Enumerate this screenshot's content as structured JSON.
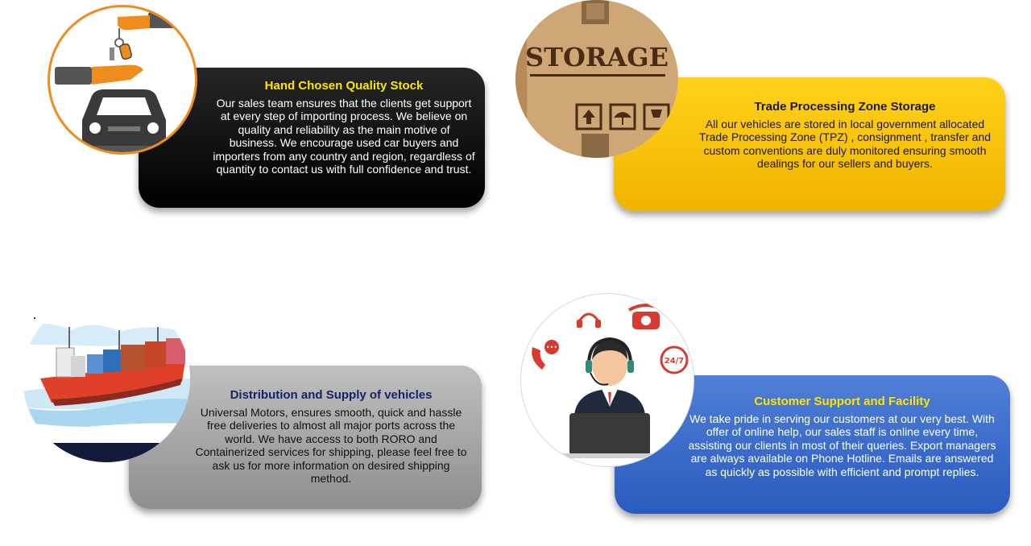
{
  "features": [
    {
      "title": "Hand Chosen Quality Stock",
      "body": "Our sales team ensures that the clients get support at every step of importing process. We believe on quality and reliability as the main motive of business. We encourage used car buyers and importers from any country and region, regardless of quantity to contact us with full confidence and trust.",
      "icon": "car-keys-handover-icon"
    },
    {
      "title": "Trade Processing Zone Storage",
      "body": "All our vehicles are stored in local government allocated Trade Processing Zone (TPZ) , consignment , transfer and custom conventions are duly monitored ensuring smooth dealings for our sellers and buyers.",
      "icon": "storage-box-icon",
      "image_text": "STORAGE"
    },
    {
      "title": "Distribution and Supply of vehicles",
      "body": "Universal Motors, ensures smooth, quick and hassle free deliveries to almost all major ports across the world. We have access to both RORO and Containerized services for shipping, please feel free to ask us for more information on desired shipping method.",
      "icon": "cargo-ship-icon"
    },
    {
      "title": "Customer Support and Facility",
      "body": "We take pride in serving our customers at our very best. With offer of online help, our sales staff is online every time, assisting our clients in most of their queries. Export managers are always available on Phone Hotline. Emails are answered as quickly as possible with efficient and prompt replies.",
      "icon": "customer-support-agent-icon",
      "image_text": "24/7"
    }
  ],
  "colors": {
    "card1_bg": "#000000",
    "card2_bg": "#f5c000",
    "card3_bg": "#a6a6a6",
    "card4_bg": "#3a6ccb",
    "heading_yellow": "#ffe400",
    "heading_navy": "#15226b",
    "accent_orange": "#f08b1e"
  }
}
